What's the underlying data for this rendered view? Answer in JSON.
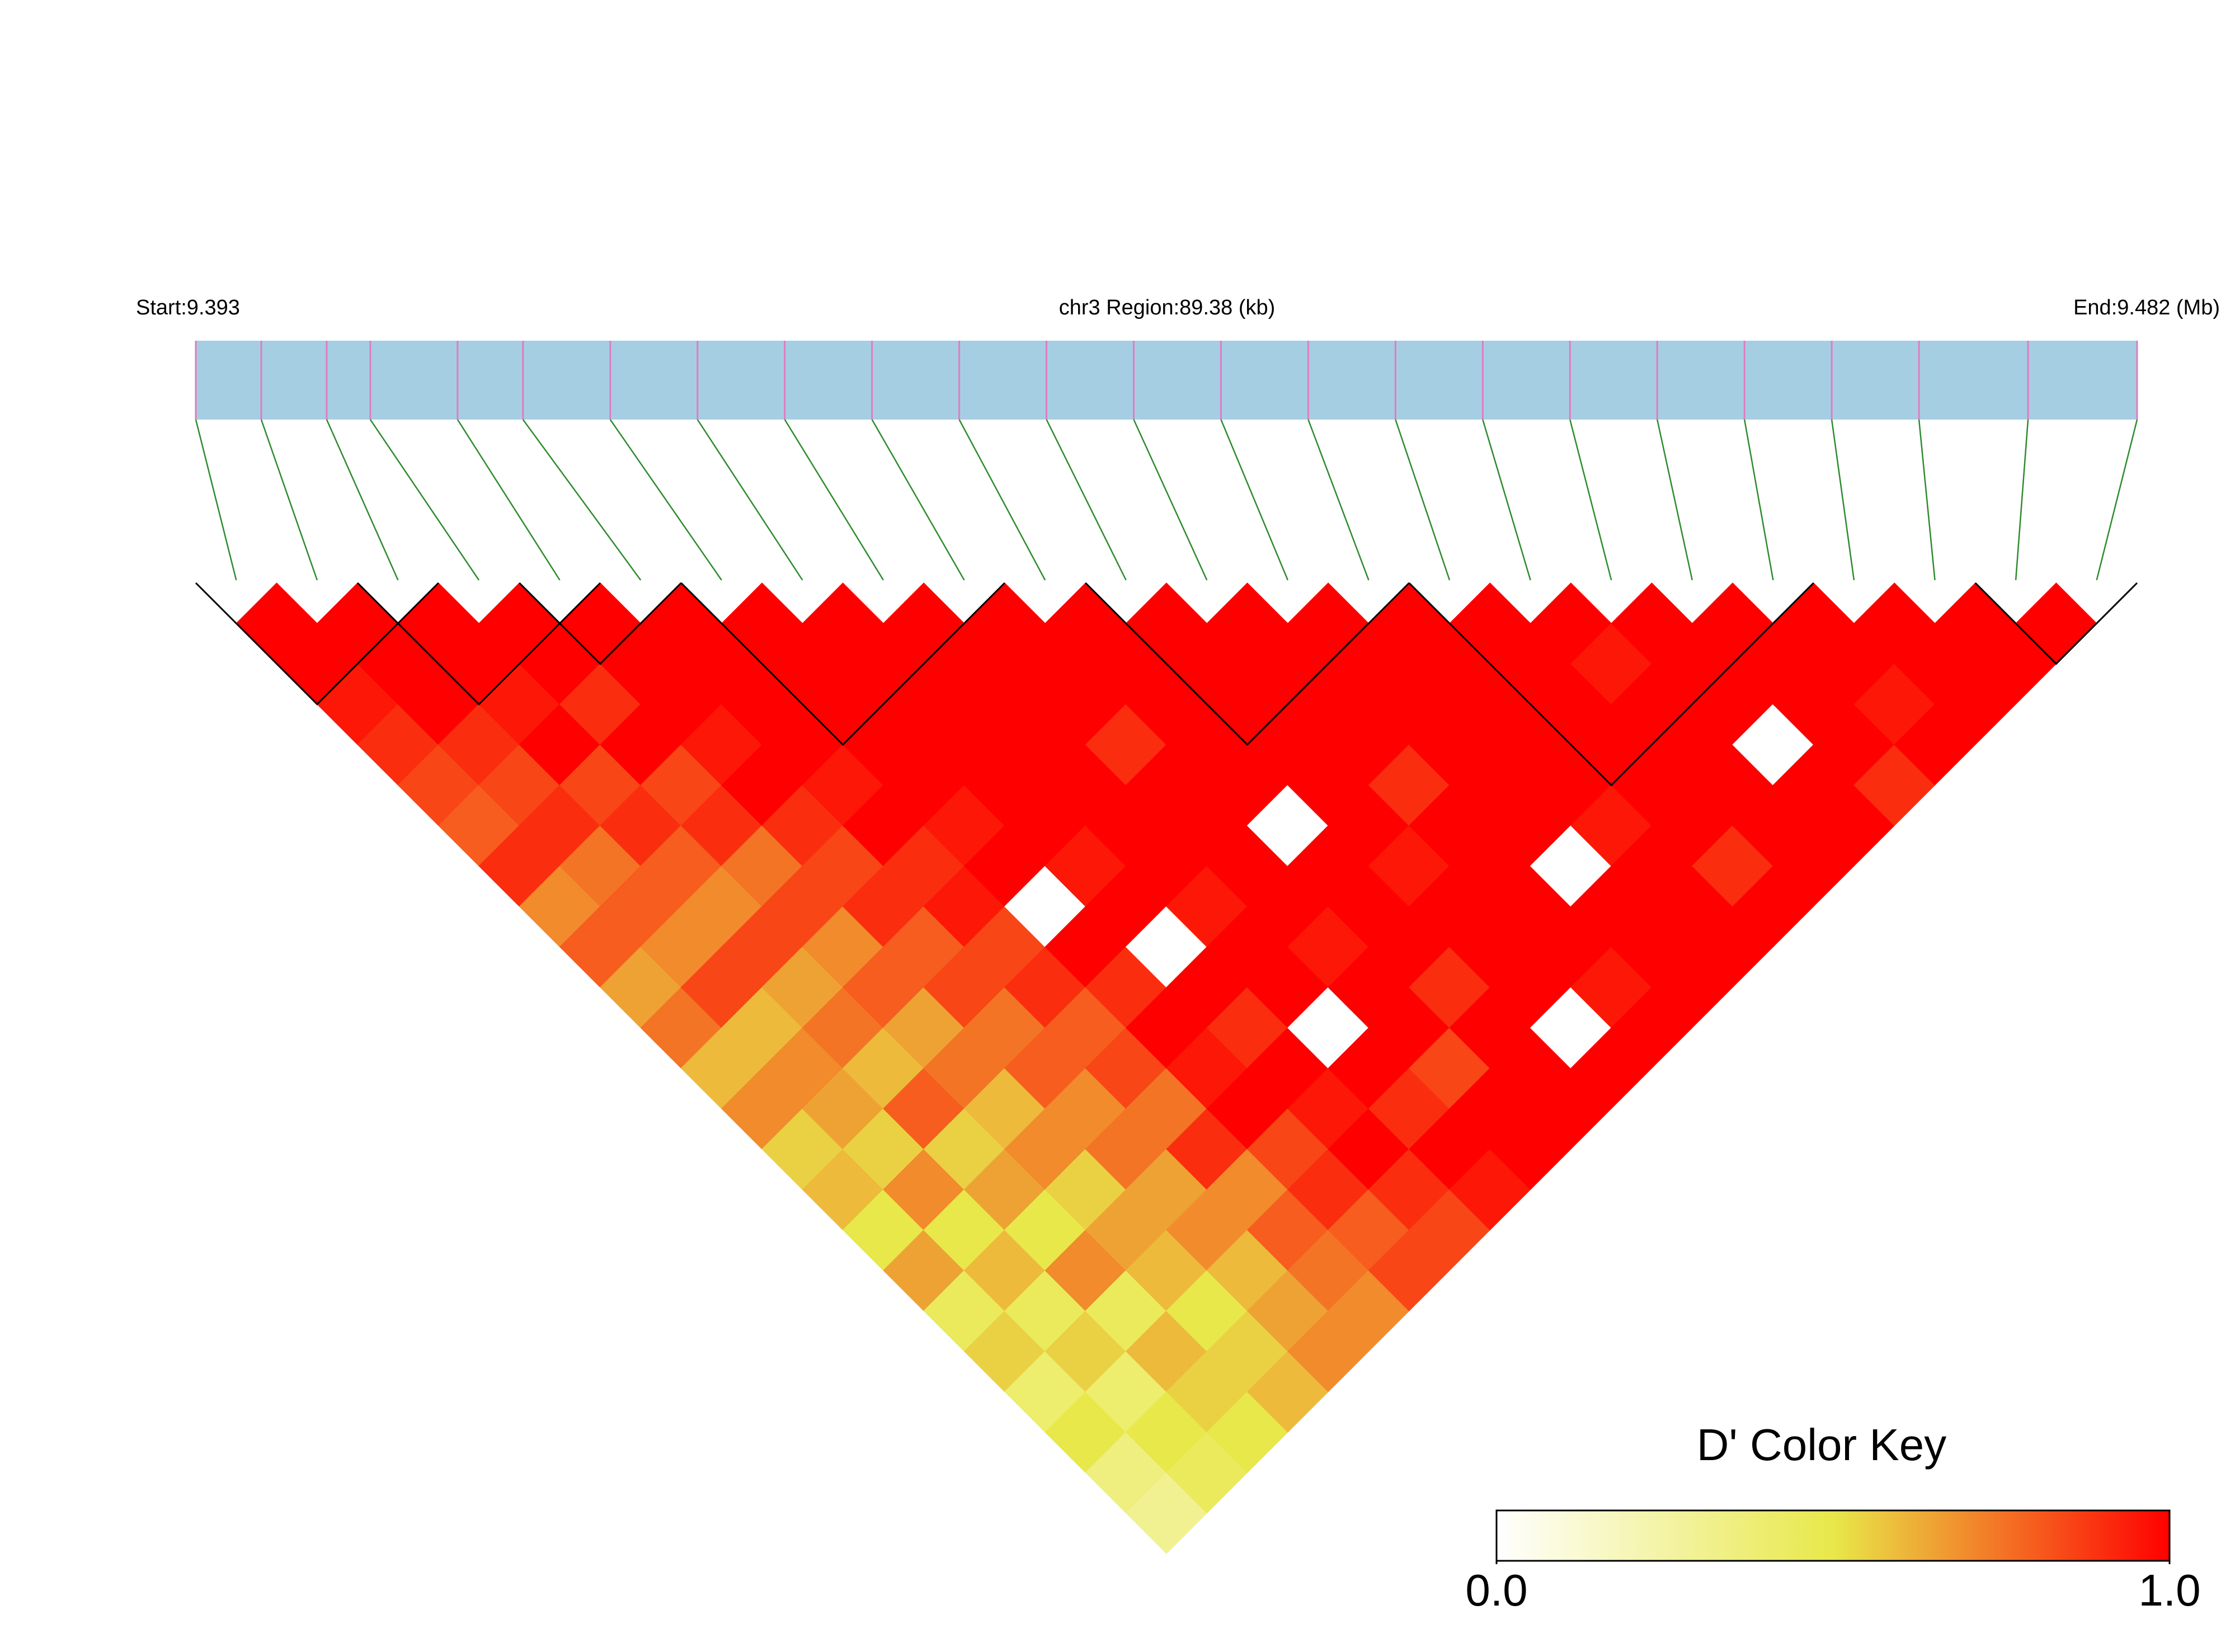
{
  "chart_data": {
    "type": "ld_heatmap",
    "start_label": "Start:9.393",
    "region_label": "chr3 Region:89.38 (kb)",
    "end_label": "End:9.482 (Mb)",
    "xlim": [
      9.393,
      9.482
    ],
    "snp_positions": [
      9.393,
      9.396,
      9.399,
      9.401,
      9.405,
      9.408,
      9.412,
      9.416,
      9.42,
      9.424,
      9.428,
      9.432,
      9.436,
      9.44,
      9.444,
      9.448,
      9.452,
      9.456,
      9.46,
      9.464,
      9.468,
      9.472,
      9.477,
      9.482
    ],
    "bar_color": "#a6cee3",
    "marker_color": "#e07cc0",
    "connector_color": "#2e8b2e",
    "values": [
      [
        1,
        1,
        0.95,
        0.9,
        0.85,
        0.8,
        0.9,
        0.7,
        0.8,
        0.65,
        0.75,
        0.6,
        0.7,
        0.55,
        0.6,
        0.5,
        0.65,
        0.45,
        0.55,
        0.4,
        0.5,
        0.35,
        0.3
      ],
      [
        1,
        1,
        1,
        0.9,
        0.85,
        0.9,
        0.75,
        0.8,
        0.7,
        0.85,
        0.6,
        0.7,
        0.65,
        0.55,
        0.7,
        0.5,
        0.6,
        0.45,
        0.55,
        0.4,
        0.5,
        0.45
      ],
      [
        1,
        1,
        0.95,
        1,
        0.85,
        0.9,
        0.8,
        0.7,
        0.85,
        0.65,
        0.75,
        0.6,
        0.8,
        0.55,
        0.65,
        0.5,
        0.7,
        0.45,
        0.6,
        0.55,
        0.5
      ],
      [
        1,
        1,
        0.9,
        1,
        0.85,
        0.9,
        0.75,
        0.85,
        0.7,
        0.8,
        0.65,
        0.75,
        0.6,
        0.7,
        0.55,
        0.65,
        0.6,
        0.5,
        0.55,
        0.6
      ],
      [
        1,
        1,
        1,
        0.95,
        1,
        0.9,
        0.85,
        0.9,
        0.8,
        0.85,
        0.75,
        0.8,
        0.7,
        0.75,
        0.65,
        0.7,
        0.6,
        0.65,
        0.7
      ],
      [
        1,
        1,
        1,
        1,
        0.95,
        1,
        0.9,
        0.95,
        0.85,
        0.9,
        0.8,
        0.85,
        0.75,
        0.9,
        0.7,
        0.8,
        0.75,
        0.7
      ],
      [
        1,
        1,
        1,
        1,
        1,
        0.95,
        1,
        0,
        1,
        0.9,
        1,
        0.95,
        1,
        0.85,
        0.9,
        0.8,
        0.85
      ],
      [
        1,
        1,
        1,
        1,
        1,
        1,
        0.95,
        1,
        0,
        1,
        0.9,
        1,
        0.95,
        1,
        0.9,
        0.85
      ],
      [
        1,
        1,
        1,
        1,
        1,
        1,
        1,
        0.95,
        1,
        1,
        0,
        1,
        0.9,
        1,
        0.95
      ],
      [
        1,
        1,
        1,
        0.9,
        1,
        1,
        1,
        1,
        0.95,
        1,
        1,
        0.85,
        1,
        1
      ],
      [
        1,
        1,
        1,
        1,
        1,
        0,
        1,
        1,
        1,
        0.9,
        1,
        1,
        1
      ],
      [
        1,
        1,
        1,
        1,
        1,
        1,
        0.95,
        1,
        1,
        1,
        0,
        1
      ],
      [
        1,
        1,
        1,
        1,
        0.9,
        1,
        1,
        1,
        1,
        0.95,
        1
      ],
      [
        1,
        1,
        1,
        1,
        1,
        1,
        0,
        1,
        1,
        1
      ],
      [
        1,
        1,
        1,
        1,
        1,
        0.95,
        1,
        1,
        1
      ],
      [
        1,
        1,
        1,
        1,
        1,
        1,
        0.9,
        1
      ],
      [
        1,
        0.95,
        1,
        1,
        1,
        1,
        1
      ],
      [
        1,
        1,
        1,
        0,
        1,
        1
      ],
      [
        1,
        1,
        1,
        1,
        0.9
      ],
      [
        1,
        1,
        0.95,
        1
      ],
      [
        1,
        1,
        1
      ],
      [
        1,
        1
      ],
      [
        1
      ]
    ],
    "blocks": [
      [
        0,
        2
      ],
      [
        2,
        4
      ],
      [
        4,
        5
      ],
      [
        6,
        9
      ],
      [
        11,
        14
      ],
      [
        15,
        19
      ],
      [
        22,
        23
      ]
    ],
    "colorbar": {
      "title": "D' Color Key",
      "range": [
        0,
        1
      ],
      "colors": [
        "#ffffff",
        "#e8e84a",
        "#ff0000"
      ],
      "ticks": [
        {
          "value": 0,
          "label": "0.0"
        },
        {
          "value": 1,
          "label": "1.0"
        }
      ]
    }
  }
}
